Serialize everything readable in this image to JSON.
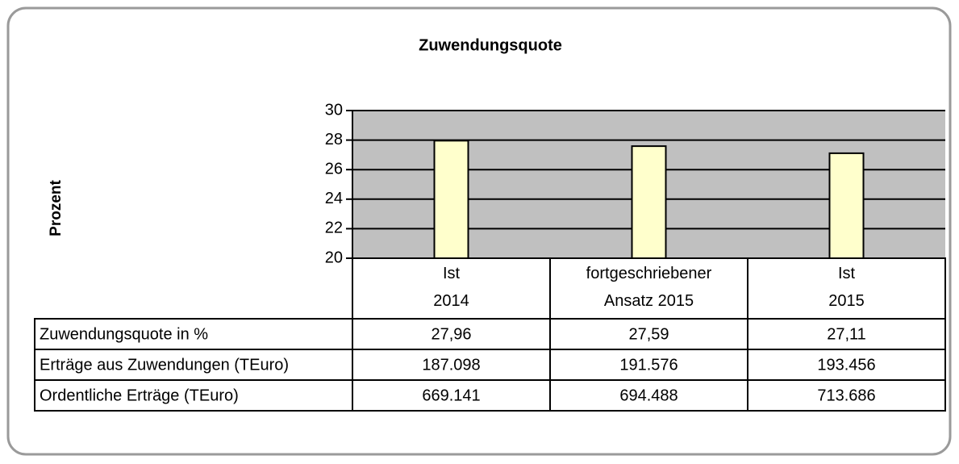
{
  "chart_data": {
    "type": "bar",
    "title": "Zuwendungsquote",
    "y_label": "Prozent",
    "categories": [
      "Ist\n2014",
      "fortgeschriebener\nAnsatz 2015",
      "Ist\n2015"
    ],
    "series": [
      {
        "name": "Zuwendungsquote in %",
        "color": "#ffffcc",
        "values": [
          27.96,
          27.59,
          27.11
        ],
        "value_labels": [
          "27,96",
          "27,59",
          "27,11"
        ]
      }
    ],
    "ylim": [
      20,
      30
    ],
    "yticks": [
      20,
      22,
      24,
      26,
      28,
      30
    ],
    "grid": true,
    "plot_background": "#c0c0c0",
    "table_rows": [
      {
        "name": "Erträge aus Zuwendungen (TEuro)",
        "cells": [
          "187.098",
          "191.576",
          "193.456"
        ]
      },
      {
        "name": "Ordentliche Erträge (TEuro)",
        "cells": [
          "669.141",
          "694.488",
          "713.686"
        ]
      }
    ]
  }
}
